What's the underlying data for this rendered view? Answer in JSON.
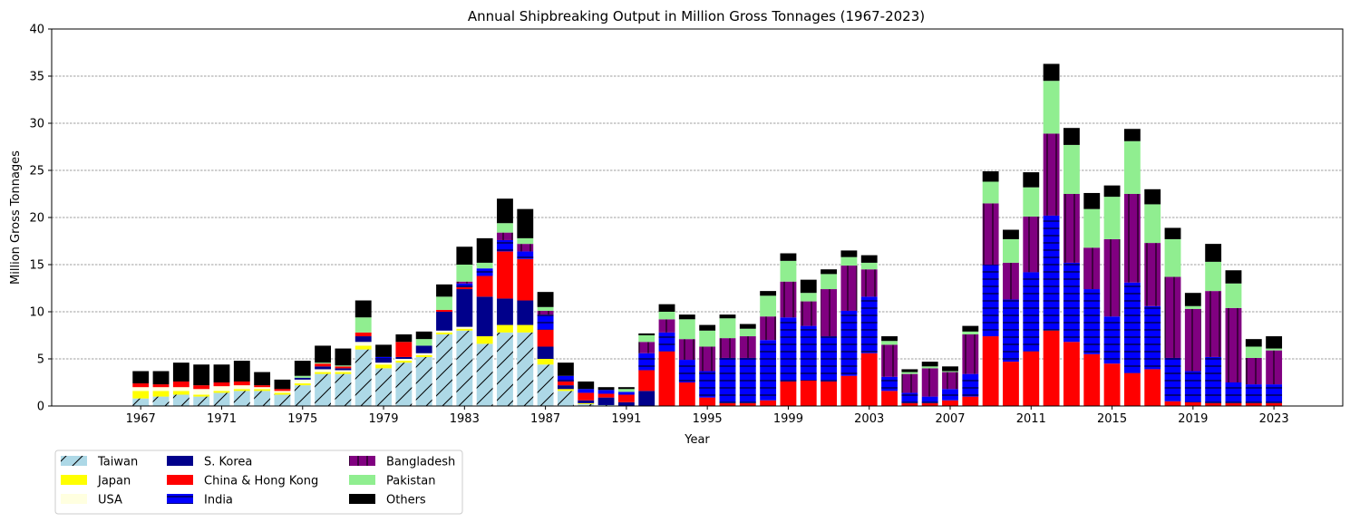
{
  "chart_data": {
    "type": "bar",
    "stacked": true,
    "title": "Annual Shipbreaking Output in Million Gross Tonnages (1967-2023)",
    "xlabel": "Year",
    "ylabel": "Million Gross Tonnages",
    "ylim": [
      0,
      40
    ],
    "yticks": [
      0,
      5,
      10,
      15,
      20,
      25,
      30,
      35,
      40
    ],
    "xticks": [
      1967,
      1971,
      1975,
      1979,
      1983,
      1987,
      1991,
      1995,
      1999,
      2003,
      2007,
      2011,
      2015,
      2019,
      2023
    ],
    "xlim": [
      1962.6,
      2026.4
    ],
    "grid": "y-dashed",
    "legend_position": "below-left",
    "years": [
      1967,
      1968,
      1969,
      1970,
      1971,
      1972,
      1973,
      1974,
      1975,
      1976,
      1977,
      1978,
      1979,
      1980,
      1981,
      1982,
      1983,
      1984,
      1985,
      1986,
      1987,
      1988,
      1989,
      1990,
      1991,
      1992,
      1993,
      1994,
      1995,
      1996,
      1997,
      1998,
      1999,
      2000,
      2001,
      2002,
      2003,
      2004,
      2005,
      2006,
      2007,
      2008,
      2009,
      2010,
      2011,
      2012,
      2013,
      2014,
      2015,
      2016,
      2017,
      2018,
      2019,
      2020,
      2021,
      2022,
      2023
    ],
    "series": [
      {
        "name": "Taiwan",
        "color": "#add8e6",
        "hatch": "/",
        "values": [
          0.8,
          1.0,
          1.2,
          1.0,
          1.4,
          1.6,
          1.6,
          1.2,
          2.2,
          3.4,
          3.4,
          6.0,
          4.0,
          4.6,
          5.2,
          7.6,
          8.0,
          6.6,
          7.8,
          7.8,
          4.4,
          1.6,
          0.2,
          0.1,
          0,
          0,
          0,
          0,
          0,
          0,
          0,
          0,
          0,
          0,
          0,
          0,
          0,
          0,
          0,
          0,
          0,
          0,
          0,
          0,
          0,
          0,
          0,
          0,
          0,
          0,
          0,
          0,
          0,
          0,
          0,
          0,
          0
        ]
      },
      {
        "name": "Japan",
        "color": "#ffff00",
        "hatch": "",
        "values": [
          0.8,
          0.6,
          0.4,
          0.2,
          0.2,
          0.2,
          0.2,
          0.2,
          0.2,
          0.2,
          0.2,
          0.4,
          0.4,
          0.2,
          0.2,
          0.2,
          0.2,
          0.8,
          0.8,
          0.8,
          0.6,
          0.2,
          0.1,
          0,
          0,
          0,
          0,
          0,
          0,
          0,
          0,
          0,
          0,
          0,
          0,
          0,
          0,
          0,
          0,
          0,
          0,
          0,
          0,
          0,
          0,
          0,
          0,
          0,
          0,
          0,
          0,
          0,
          0,
          0,
          0,
          0,
          0
        ]
      },
      {
        "name": "USA",
        "color": "#ffffe0",
        "hatch": "",
        "values": [
          0.4,
          0.4,
          0.4,
          0.6,
          0.5,
          0.4,
          0.2,
          0.2,
          0.4,
          0.3,
          0.2,
          0.4,
          0.2,
          0.2,
          0.2,
          0.2,
          0.2,
          0,
          0,
          0,
          0,
          0,
          0,
          0,
          0,
          0,
          0,
          0,
          0,
          0,
          0,
          0,
          0,
          0,
          0,
          0,
          0,
          0,
          0,
          0,
          0,
          0,
          0,
          0,
          0,
          0,
          0,
          0,
          0,
          0,
          0,
          0,
          0,
          0,
          0,
          0,
          0
        ]
      },
      {
        "name": "S. Korea",
        "color": "#00008b",
        "hatch": "",
        "values": [
          0,
          0,
          0,
          0,
          0,
          0,
          0,
          0,
          0.2,
          0.3,
          0.2,
          0.6,
          0.4,
          0.2,
          0.8,
          2.0,
          4.0,
          4.2,
          2.8,
          2.6,
          1.3,
          0.4,
          0.3,
          0.8,
          0.4,
          1.6,
          0,
          0,
          0,
          0,
          0,
          0,
          0,
          0,
          0,
          0,
          0,
          0,
          0,
          0,
          0,
          0,
          0,
          0,
          0,
          0,
          0,
          0,
          0,
          0,
          0,
          0,
          0,
          0,
          0,
          0,
          0
        ]
      },
      {
        "name": "China & Hong Kong",
        "color": "#ff0000",
        "hatch": "",
        "values": [
          0.4,
          0.3,
          0.6,
          0.4,
          0.4,
          0.4,
          0.2,
          0.2,
          0,
          0.3,
          0.2,
          0.4,
          0,
          1.6,
          0,
          0.2,
          0.2,
          2.2,
          5.0,
          4.4,
          1.8,
          0.4,
          0.8,
          0.4,
          0.8,
          2.2,
          5.8,
          2.5,
          0.9,
          0.3,
          0.3,
          0.6,
          2.6,
          2.7,
          2.6,
          3.2,
          5.6,
          1.6,
          0.3,
          0.3,
          0.6,
          1.0,
          7.4,
          4.7,
          5.8,
          8.0,
          6.8,
          5.5,
          4.5,
          3.5,
          3.9,
          0.5,
          0.4,
          0.3,
          0.3,
          0.3,
          0.3
        ]
      },
      {
        "name": "India",
        "color": "#0000ff",
        "hatch": "-",
        "values": [
          0,
          0,
          0,
          0,
          0,
          0,
          0,
          0,
          0,
          0,
          0,
          0,
          0.2,
          0,
          0,
          0,
          0.4,
          0.8,
          1.2,
          0.8,
          1.6,
          0.6,
          0.4,
          0.4,
          0.3,
          1.8,
          2.0,
          2.4,
          2.8,
          4.8,
          4.8,
          6.4,
          6.8,
          5.8,
          4.8,
          6.9,
          6.0,
          1.5,
          1.1,
          0.7,
          1.2,
          2.4,
          7.6,
          6.6,
          8.4,
          12.2,
          8.4,
          6.9,
          5.0,
          9.6,
          6.7,
          4.6,
          3.3,
          4.9,
          2.2,
          2.0,
          2.0
        ]
      },
      {
        "name": "Bangladesh",
        "color": "#800080",
        "hatch": "|",
        "values": [
          0,
          0,
          0,
          0,
          0,
          0,
          0,
          0,
          0,
          0,
          0,
          0,
          0,
          0,
          0,
          0,
          0.2,
          0,
          0.8,
          0.8,
          0.4,
          0,
          0,
          0,
          0,
          1.2,
          1.4,
          2.2,
          2.6,
          2.1,
          2.3,
          2.5,
          3.8,
          2.6,
          5.0,
          4.8,
          2.9,
          3.4,
          2.0,
          3.0,
          1.8,
          4.2,
          6.5,
          3.9,
          5.9,
          8.7,
          7.3,
          4.4,
          8.2,
          9.4,
          6.7,
          8.6,
          6.6,
          7.0,
          7.9,
          2.8,
          3.6
        ]
      },
      {
        "name": "Pakistan",
        "color": "#90ee90",
        "hatch": "",
        "values": [
          0,
          0,
          0,
          0,
          0,
          0,
          0,
          0,
          0.2,
          0.1,
          0.1,
          1.6,
          0,
          0,
          0.7,
          1.4,
          1.8,
          0.6,
          1.0,
          0.6,
          0.4,
          0,
          0,
          0,
          0.3,
          0.7,
          0.8,
          2.1,
          1.7,
          2.1,
          0.8,
          2.2,
          2.2,
          0.9,
          1.6,
          0.9,
          0.7,
          0.4,
          0.2,
          0.2,
          0.1,
          0.3,
          2.3,
          2.5,
          3.1,
          5.6,
          5.2,
          4.1,
          4.5,
          5.6,
          4.1,
          4.0,
          0.3,
          3.1,
          2.6,
          1.2,
          0.2
        ]
      },
      {
        "name": "Others",
        "color": "#000000",
        "hatch": "",
        "values": [
          1.3,
          1.4,
          2.0,
          2.2,
          1.9,
          2.2,
          1.4,
          1.0,
          1.6,
          1.8,
          1.8,
          1.8,
          1.3,
          0.8,
          0.8,
          1.3,
          1.9,
          2.6,
          2.6,
          3.1,
          1.6,
          1.4,
          0.8,
          0.3,
          0.2,
          0.2,
          0.8,
          0.5,
          0.6,
          0.4,
          0.5,
          0.5,
          0.8,
          1.4,
          0.5,
          0.7,
          0.8,
          0.5,
          0.3,
          0.5,
          0.5,
          0.6,
          1.1,
          1.0,
          1.6,
          1.8,
          1.8,
          1.7,
          1.2,
          1.3,
          1.6,
          1.2,
          1.4,
          1.9,
          1.4,
          0.8,
          1.3
        ]
      }
    ]
  }
}
